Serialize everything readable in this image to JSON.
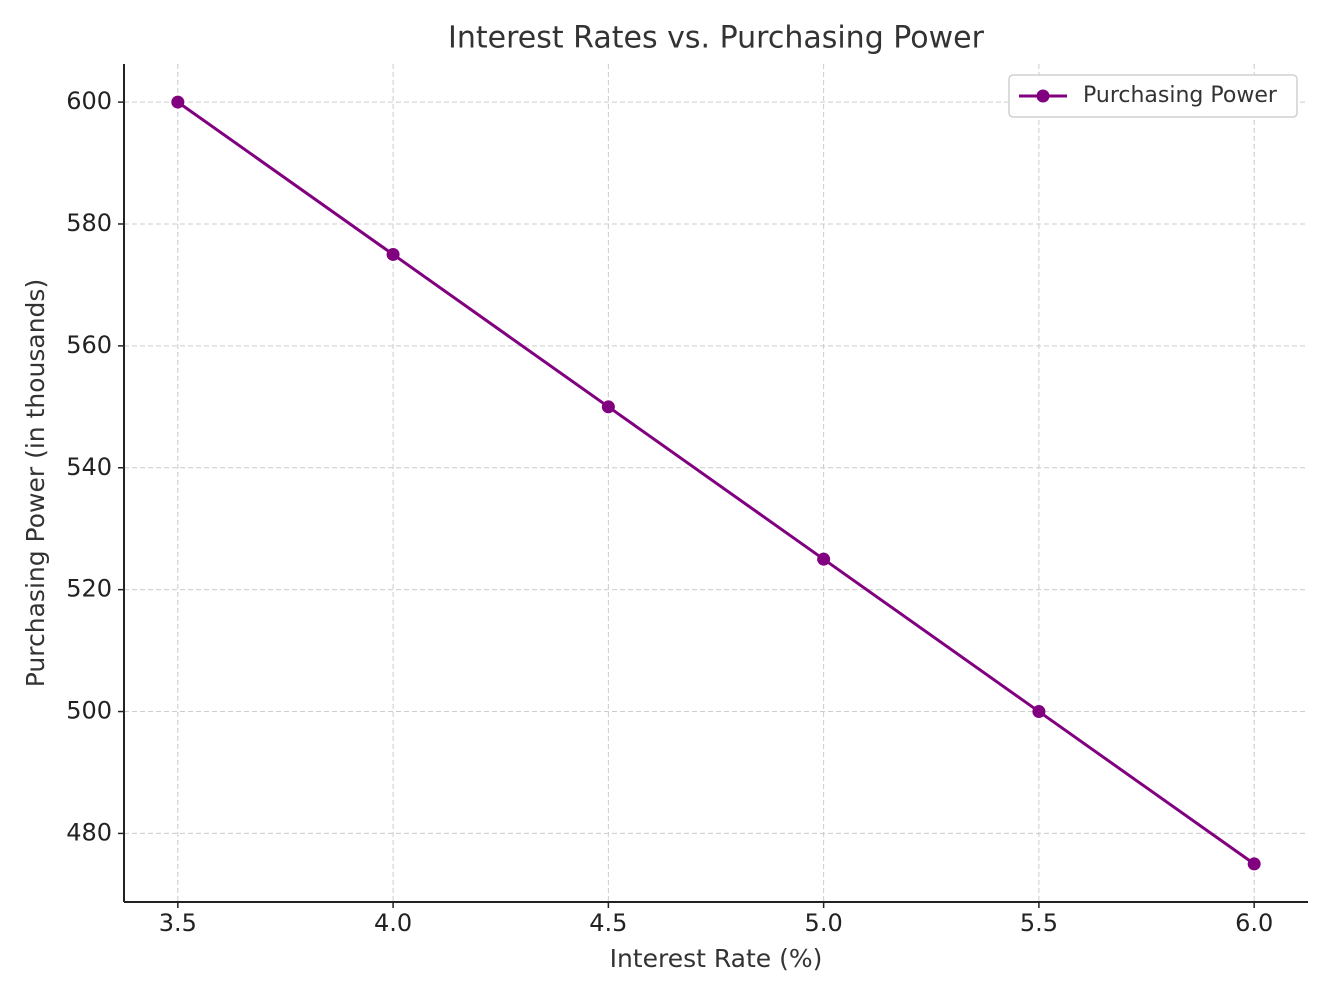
{
  "chart_data": {
    "type": "line",
    "title": "Interest Rates vs. Purchasing Power",
    "x_label": "Interest Rate (%)",
    "y_label": "Purchasing Power (in thousands)",
    "x": [
      3.5,
      4.0,
      4.5,
      5.0,
      5.5,
      6.0
    ],
    "series": [
      {
        "name": "Purchasing Power",
        "color": "#800080",
        "values": [
          600,
          575,
          550,
          525,
          500,
          475
        ]
      }
    ],
    "xlim": [
      3.375,
      6.125
    ],
    "xticks": [
      3.5,
      {
        "value": 4,
        "label": "4.0"
      },
      4.5,
      {
        "value": 5,
        "label": "5.0"
      },
      5.5,
      {
        "value": 6,
        "label": "6.0"
      }
    ],
    "ylim": [
      468.75,
      606.25
    ],
    "yticks": [
      480,
      500,
      520,
      540,
      560,
      580,
      600
    ],
    "grid": true,
    "legend": "upper right",
    "markers": true
  }
}
